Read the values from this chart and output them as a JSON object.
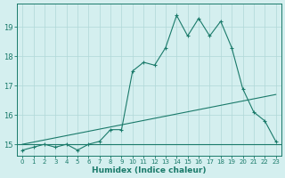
{
  "title": "",
  "xlabel": "Humidex (Indice chaleur)",
  "bg_color": "#d4efef",
  "line_color": "#1a7a6a",
  "grid_color": "#b0d8d8",
  "x_data": [
    0,
    1,
    2,
    3,
    4,
    5,
    6,
    7,
    8,
    9,
    10,
    11,
    12,
    13,
    14,
    15,
    16,
    17,
    18,
    19,
    20,
    21,
    22,
    23
  ],
  "y_main": [
    14.8,
    14.9,
    15.0,
    14.9,
    15.0,
    14.8,
    15.0,
    15.1,
    15.5,
    15.5,
    17.5,
    17.8,
    17.7,
    18.3,
    19.4,
    18.7,
    19.3,
    18.7,
    19.2,
    18.3,
    16.9,
    16.1,
    15.8,
    15.1
  ],
  "y_hline": 15.0,
  "trend_x": [
    0,
    23
  ],
  "trend_y": [
    15.0,
    16.7
  ],
  "xlim": [
    -0.5,
    23.5
  ],
  "ylim": [
    14.6,
    19.8
  ],
  "yticks": [
    15,
    16,
    17,
    18,
    19
  ],
  "xticks": [
    0,
    1,
    2,
    3,
    4,
    5,
    6,
    7,
    8,
    9,
    10,
    11,
    12,
    13,
    14,
    15,
    16,
    17,
    18,
    19,
    20,
    21,
    22,
    23
  ]
}
